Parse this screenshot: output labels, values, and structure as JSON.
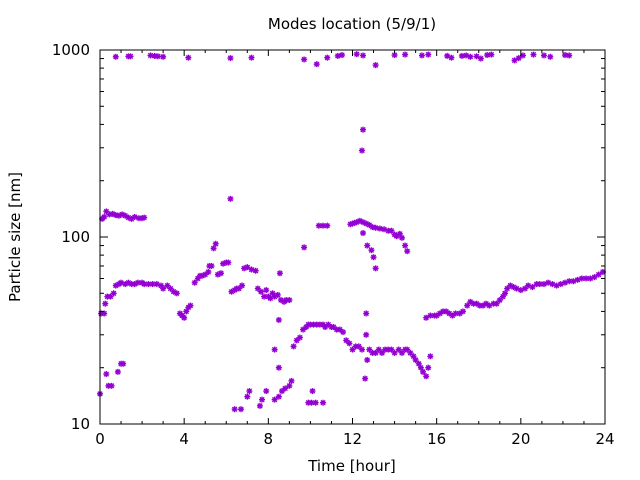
{
  "chart_data": {
    "type": "scatter",
    "title": "Modes location (5/9/1)",
    "xlabel": "Time [hour]",
    "ylabel": "Particle size [nm]",
    "xlim": [
      0,
      24
    ],
    "ylim": [
      10,
      1000
    ],
    "yscale": "log",
    "grid": false,
    "legend": "none",
    "xticks": [
      0,
      4,
      8,
      12,
      16,
      20,
      24
    ],
    "xtick_labels": [
      "0",
      "4",
      "8",
      "12",
      "16",
      "20",
      "24"
    ],
    "yticks": [
      10,
      100,
      1000
    ],
    "ytick_labels": [
      "10",
      "100",
      "1000"
    ],
    "marker_color": "#9400d3",
    "series": [
      {
        "points": [
          [
            0.75,
            920
          ],
          [
            1.35,
            925
          ],
          [
            1.45,
            925
          ],
          [
            2.4,
            935
          ],
          [
            2.6,
            930
          ],
          [
            2.75,
            925
          ],
          [
            3.0,
            920
          ],
          [
            4.2,
            910
          ],
          [
            6.2,
            905
          ],
          [
            7.2,
            910
          ],
          [
            9.7,
            890
          ],
          [
            10.3,
            840
          ],
          [
            10.8,
            910
          ],
          [
            11.3,
            930
          ],
          [
            11.5,
            940
          ],
          [
            12.2,
            950
          ],
          [
            12.5,
            935
          ],
          [
            13.1,
            830
          ],
          [
            14.0,
            940
          ],
          [
            14.5,
            945
          ],
          [
            15.3,
            935
          ],
          [
            15.6,
            945
          ],
          [
            16.5,
            930
          ],
          [
            16.7,
            910
          ],
          [
            17.2,
            930
          ],
          [
            17.4,
            935
          ],
          [
            17.6,
            920
          ],
          [
            17.9,
            925
          ],
          [
            18.1,
            900
          ],
          [
            18.4,
            940
          ],
          [
            18.6,
            945
          ],
          [
            19.7,
            880
          ],
          [
            19.9,
            905
          ],
          [
            20.1,
            935
          ],
          [
            20.6,
            945
          ],
          [
            21.1,
            935
          ],
          [
            21.4,
            920
          ],
          [
            22.1,
            940
          ],
          [
            22.3,
            935
          ],
          [
            12.5,
            375
          ],
          [
            12.45,
            290
          ],
          [
            6.2,
            160
          ],
          [
            0.1,
            125
          ],
          [
            0.2,
            128
          ],
          [
            0.3,
            137
          ],
          [
            0.45,
            132
          ],
          [
            0.6,
            133
          ],
          [
            0.75,
            131
          ],
          [
            0.9,
            130
          ],
          [
            1.05,
            132
          ],
          [
            1.2,
            130
          ],
          [
            1.35,
            127
          ],
          [
            1.5,
            125
          ],
          [
            1.65,
            128
          ],
          [
            1.85,
            126
          ],
          [
            2.0,
            126
          ],
          [
            2.1,
            127
          ],
          [
            10.4,
            115
          ],
          [
            10.6,
            115
          ],
          [
            10.8,
            115
          ],
          [
            11.9,
            117
          ],
          [
            12.0,
            118
          ],
          [
            12.1,
            119
          ],
          [
            12.2,
            120
          ],
          [
            12.35,
            122
          ],
          [
            12.5,
            120
          ],
          [
            12.65,
            118
          ],
          [
            12.8,
            116
          ],
          [
            12.95,
            113
          ],
          [
            13.1,
            112
          ],
          [
            13.3,
            111
          ],
          [
            13.5,
            110
          ],
          [
            13.7,
            108
          ],
          [
            13.85,
            108
          ],
          [
            14.0,
            103
          ],
          [
            14.1,
            101
          ],
          [
            14.25,
            104
          ],
          [
            14.35,
            99
          ],
          [
            14.5,
            90
          ],
          [
            14.6,
            84
          ],
          [
            12.7,
            90
          ],
          [
            12.9,
            85
          ],
          [
            13.0,
            78
          ],
          [
            13.1,
            68
          ],
          [
            12.5,
            105
          ],
          [
            9.7,
            88
          ],
          [
            0.05,
            39
          ],
          [
            0.2,
            39
          ],
          [
            0.25,
            44
          ],
          [
            0.35,
            48
          ],
          [
            0.5,
            48
          ],
          [
            0.65,
            50
          ],
          [
            0.75,
            55
          ],
          [
            0.9,
            56
          ],
          [
            1.0,
            57
          ],
          [
            1.2,
            56
          ],
          [
            1.35,
            57
          ],
          [
            1.5,
            56
          ],
          [
            1.65,
            56
          ],
          [
            1.8,
            57
          ],
          [
            2.0,
            57
          ],
          [
            2.1,
            56
          ],
          [
            2.3,
            56
          ],
          [
            2.5,
            56
          ],
          [
            2.7,
            56
          ],
          [
            2.9,
            55
          ],
          [
            3.0,
            53
          ],
          [
            3.2,
            55
          ],
          [
            3.35,
            53
          ],
          [
            3.5,
            51
          ],
          [
            3.65,
            50
          ],
          [
            3.8,
            39
          ],
          [
            3.9,
            38
          ],
          [
            4.0,
            37
          ],
          [
            4.1,
            40
          ],
          [
            4.2,
            42
          ],
          [
            4.3,
            43
          ],
          [
            4.5,
            57
          ],
          [
            4.65,
            60
          ],
          [
            4.75,
            62
          ],
          [
            4.85,
            62
          ],
          [
            5.0,
            63
          ],
          [
            5.15,
            65
          ],
          [
            5.2,
            70
          ],
          [
            5.3,
            70
          ],
          [
            5.4,
            87
          ],
          [
            5.5,
            92
          ],
          [
            5.6,
            63
          ],
          [
            5.75,
            64
          ],
          [
            5.85,
            72
          ],
          [
            6.0,
            73
          ],
          [
            6.1,
            73
          ],
          [
            6.25,
            51
          ],
          [
            6.4,
            52
          ],
          [
            6.5,
            53
          ],
          [
            6.6,
            53
          ],
          [
            6.75,
            55
          ],
          [
            6.85,
            68
          ],
          [
            7.0,
            69
          ],
          [
            7.2,
            67
          ],
          [
            7.4,
            66
          ],
          [
            7.5,
            53
          ],
          [
            7.65,
            51
          ],
          [
            7.8,
            48
          ],
          [
            7.9,
            52
          ],
          [
            8.0,
            48
          ],
          [
            8.1,
            47
          ],
          [
            8.2,
            50
          ],
          [
            8.3,
            48
          ],
          [
            8.45,
            49
          ],
          [
            8.55,
            64
          ],
          [
            8.6,
            46
          ],
          [
            8.75,
            45
          ],
          [
            8.85,
            46
          ],
          [
            9.0,
            46
          ],
          [
            8.5,
            36
          ],
          [
            9.2,
            26
          ],
          [
            9.35,
            28
          ],
          [
            9.5,
            29
          ],
          [
            9.65,
            32
          ],
          [
            9.8,
            33
          ],
          [
            9.9,
            34
          ],
          [
            10.0,
            34
          ],
          [
            10.15,
            34
          ],
          [
            10.3,
            34
          ],
          [
            10.45,
            34
          ],
          [
            10.6,
            34
          ],
          [
            10.7,
            33
          ],
          [
            10.85,
            34
          ],
          [
            11.0,
            33
          ],
          [
            11.1,
            33
          ],
          [
            11.25,
            32
          ],
          [
            11.4,
            32
          ],
          [
            11.55,
            31
          ],
          [
            11.7,
            28
          ],
          [
            11.85,
            27
          ],
          [
            12.0,
            25
          ],
          [
            12.15,
            26
          ],
          [
            12.3,
            26
          ],
          [
            12.45,
            25
          ],
          [
            12.65,
            30
          ],
          [
            12.7,
            22
          ],
          [
            12.8,
            25
          ],
          [
            12.95,
            24
          ],
          [
            13.1,
            24
          ],
          [
            13.25,
            25
          ],
          [
            13.4,
            24
          ],
          [
            13.55,
            25
          ],
          [
            13.7,
            25
          ],
          [
            13.85,
            25
          ],
          [
            14.0,
            24
          ],
          [
            14.2,
            25
          ],
          [
            14.35,
            24
          ],
          [
            14.5,
            25
          ],
          [
            14.6,
            25
          ],
          [
            14.75,
            24
          ],
          [
            14.9,
            23
          ],
          [
            15.0,
            22
          ],
          [
            15.15,
            21
          ],
          [
            15.25,
            20
          ],
          [
            15.35,
            19
          ],
          [
            15.5,
            18
          ],
          [
            15.6,
            20
          ],
          [
            15.7,
            23
          ],
          [
            12.6,
            17.5
          ],
          [
            12.65,
            39
          ],
          [
            8.3,
            25
          ],
          [
            8.5,
            20
          ],
          [
            15.5,
            37
          ],
          [
            15.7,
            38
          ],
          [
            15.9,
            38
          ],
          [
            16.0,
            38
          ],
          [
            16.15,
            39
          ],
          [
            16.3,
            40
          ],
          [
            16.45,
            40
          ],
          [
            16.6,
            39
          ],
          [
            16.75,
            38
          ],
          [
            16.9,
            39
          ],
          [
            17.1,
            39
          ],
          [
            17.25,
            40
          ],
          [
            17.45,
            43
          ],
          [
            17.6,
            45
          ],
          [
            17.75,
            44
          ],
          [
            17.9,
            44
          ],
          [
            18.05,
            43
          ],
          [
            18.2,
            43
          ],
          [
            18.35,
            44
          ],
          [
            18.5,
            43
          ],
          [
            18.7,
            44
          ],
          [
            18.85,
            44
          ],
          [
            19.0,
            46
          ],
          [
            19.15,
            48
          ],
          [
            19.25,
            50
          ],
          [
            19.35,
            53
          ],
          [
            19.5,
            55
          ],
          [
            19.65,
            54
          ],
          [
            19.8,
            53
          ],
          [
            20.0,
            52
          ],
          [
            20.2,
            53
          ],
          [
            20.35,
            55
          ],
          [
            20.55,
            54
          ],
          [
            20.75,
            56
          ],
          [
            20.9,
            56
          ],
          [
            21.1,
            56
          ],
          [
            21.3,
            57
          ],
          [
            21.5,
            56
          ],
          [
            21.7,
            55
          ],
          [
            21.9,
            56
          ],
          [
            22.1,
            57
          ],
          [
            22.3,
            58
          ],
          [
            22.5,
            58
          ],
          [
            22.7,
            59
          ],
          [
            22.9,
            60
          ],
          [
            23.1,
            60
          ],
          [
            23.3,
            60
          ],
          [
            23.5,
            61
          ],
          [
            23.7,
            63
          ],
          [
            23.9,
            65
          ],
          [
            0.0,
            14.5
          ],
          [
            0.3,
            18.5
          ],
          [
            0.4,
            16
          ],
          [
            0.55,
            16
          ],
          [
            0.85,
            19
          ],
          [
            1.0,
            21
          ],
          [
            1.1,
            21
          ],
          [
            6.4,
            12
          ],
          [
            6.7,
            12
          ],
          [
            7.0,
            14
          ],
          [
            7.1,
            15
          ],
          [
            7.6,
            12.5
          ],
          [
            7.7,
            13.5
          ],
          [
            7.9,
            15
          ],
          [
            8.3,
            13.5
          ],
          [
            8.5,
            14
          ],
          [
            8.65,
            15
          ],
          [
            8.8,
            15.5
          ],
          [
            9.0,
            16
          ],
          [
            9.1,
            17
          ],
          [
            9.9,
            13
          ],
          [
            10.05,
            13
          ],
          [
            10.25,
            13
          ],
          [
            10.1,
            15
          ],
          [
            10.6,
            13
          ]
        ]
      }
    ]
  }
}
